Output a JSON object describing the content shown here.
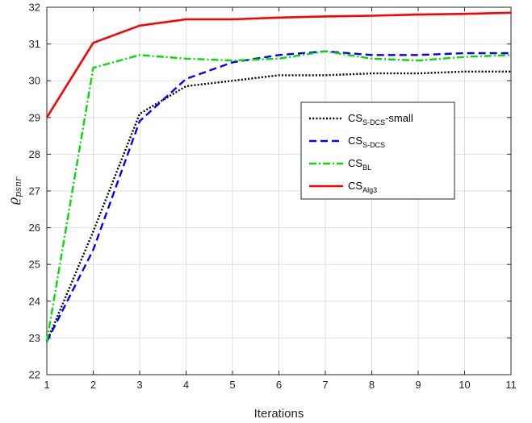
{
  "chart_data": {
    "type": "line",
    "title": "",
    "xlabel": "Iterations",
    "ylabel": {
      "base": "ϱ",
      "sub": "psnr"
    },
    "xlim": [
      1,
      11
    ],
    "ylim": [
      22,
      32
    ],
    "xticks": [
      "1",
      "2",
      "3",
      "4",
      "5",
      "6",
      "7",
      "8",
      "9",
      "10",
      "11"
    ],
    "yticks": [
      "22",
      "23",
      "24",
      "25",
      "26",
      "27",
      "28",
      "29",
      "30",
      "31",
      "32"
    ],
    "grid": true,
    "legend_position": "center-right",
    "x": [
      1,
      2,
      3,
      4,
      5,
      6,
      7,
      8,
      9,
      10,
      11
    ],
    "series": [
      {
        "name": {
          "base": "CS",
          "sub": "S-DCS",
          "suffix": "-small"
        },
        "color": "#000000",
        "dash": "dotted",
        "values": [
          22.9,
          25.9,
          29.1,
          29.85,
          30.0,
          30.15,
          30.15,
          30.2,
          30.2,
          30.25,
          30.25
        ]
      },
      {
        "name": {
          "base": "CS",
          "sub": "S-DCS",
          "suffix": ""
        },
        "color": "#0000ff",
        "dash": "dashed",
        "values": [
          22.9,
          25.4,
          28.9,
          30.05,
          30.5,
          30.7,
          30.8,
          30.7,
          30.7,
          30.75,
          30.75
        ]
      },
      {
        "name": {
          "base": "CS",
          "sub": "BL",
          "suffix": ""
        },
        "color": "#00dd00",
        "dash": "dashdot",
        "values": [
          22.9,
          30.35,
          30.7,
          30.6,
          30.55,
          30.6,
          30.8,
          30.6,
          30.55,
          30.65,
          30.7
        ]
      },
      {
        "name": {
          "base": "CS",
          "sub": "Alg3",
          "suffix": ""
        },
        "color": "#ff0000",
        "dash": "solid",
        "values": [
          29.0,
          31.03,
          31.5,
          31.67,
          31.67,
          31.72,
          31.75,
          31.77,
          31.8,
          31.82,
          31.85
        ]
      }
    ]
  }
}
